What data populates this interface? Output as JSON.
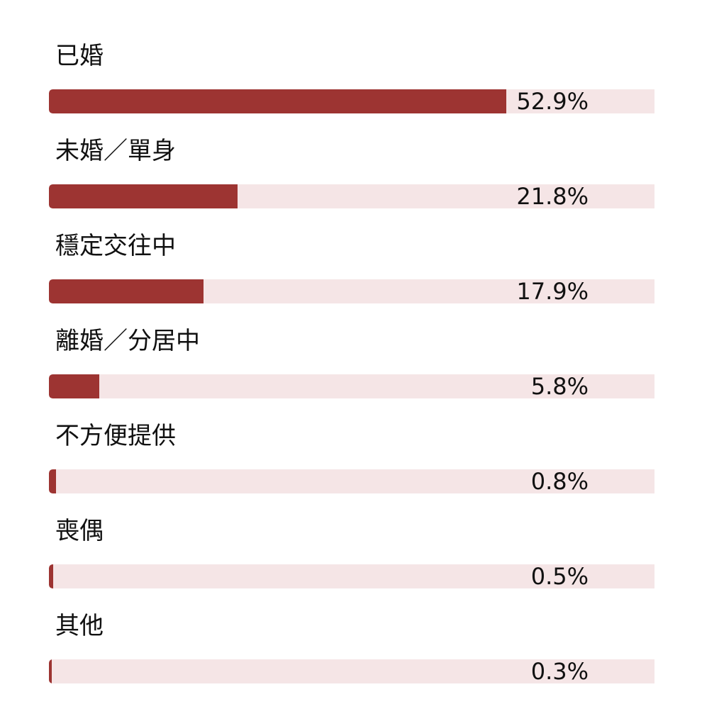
{
  "chart_data": {
    "type": "bar",
    "orientation": "horizontal",
    "categories": [
      "已婚",
      "未婚／單身",
      "穩定交往中",
      "離婚／分居中",
      "不方便提供",
      "喪偶",
      "其他"
    ],
    "values": [
      52.9,
      21.8,
      17.9,
      5.8,
      0.8,
      0.5,
      0.3
    ],
    "value_labels": [
      "52.9%",
      "21.8%",
      "17.9%",
      "5.8%",
      "0.8%",
      "0.5%",
      "0.3%"
    ],
    "unit": "%",
    "xlim": [
      0,
      70
    ],
    "title": "",
    "xlabel": "",
    "ylabel": "",
    "grid": false,
    "legend": "none",
    "colors": {
      "bar": "#9d3432",
      "track": "#f5e5e6",
      "text": "#111111"
    }
  }
}
